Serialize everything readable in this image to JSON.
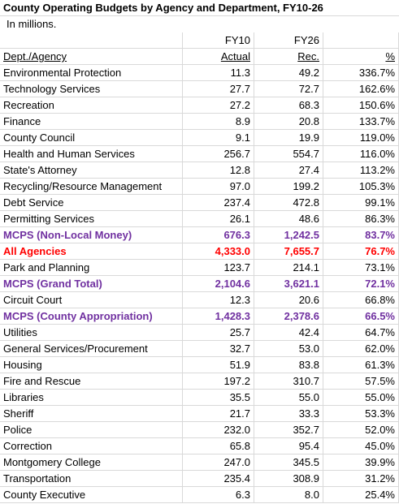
{
  "table": {
    "title": "County Operating Budgets by Agency and Department, FY10-26",
    "note": "In millions.",
    "year_headers": [
      "FY10",
      "FY26"
    ],
    "columns": [
      "Dept./Agency",
      "Actual",
      "Rec.",
      "%"
    ],
    "rows": [
      {
        "cells": [
          "Environmental Protection",
          "11.3",
          "49.2",
          "336.7%"
        ]
      },
      {
        "cells": [
          "Technology Services",
          "27.7",
          "72.7",
          "162.6%"
        ]
      },
      {
        "cells": [
          "Recreation",
          "27.2",
          "68.3",
          "150.6%"
        ]
      },
      {
        "cells": [
          "Finance",
          "8.9",
          "20.8",
          "133.7%"
        ]
      },
      {
        "cells": [
          "County Council",
          "9.1",
          "19.9",
          "119.0%"
        ]
      },
      {
        "cells": [
          "Health and Human Services",
          "256.7",
          "554.7",
          "116.0%"
        ]
      },
      {
        "cells": [
          "State's Attorney",
          "12.8",
          "27.4",
          "113.2%"
        ]
      },
      {
        "cells": [
          "Recycling/Resource Management",
          "97.0",
          "199.2",
          "105.3%"
        ]
      },
      {
        "cells": [
          "Debt Service",
          "237.4",
          "472.8",
          "99.1%"
        ]
      },
      {
        "cells": [
          "Permitting Services",
          "26.1",
          "48.6",
          "86.3%"
        ]
      },
      {
        "cells": [
          "MCPS (Non-Local Money)",
          "676.3",
          "1,242.5",
          "83.7%"
        ],
        "color": "#7030a0",
        "bold": true
      },
      {
        "cells": [
          "All Agencies",
          "4,333.0",
          "7,655.7",
          "76.7%"
        ],
        "color": "#ff0000",
        "bold": true
      },
      {
        "cells": [
          "Park and Planning",
          "123.7",
          "214.1",
          "73.1%"
        ]
      },
      {
        "cells": [
          "MCPS (Grand Total)",
          "2,104.6",
          "3,621.1",
          "72.1%"
        ],
        "color": "#7030a0",
        "bold": true
      },
      {
        "cells": [
          "Circuit Court",
          "12.3",
          "20.6",
          "66.8%"
        ]
      },
      {
        "cells": [
          "MCPS (County Appropriation)",
          "1,428.3",
          "2,378.6",
          "66.5%"
        ],
        "color": "#7030a0",
        "bold": true
      },
      {
        "cells": [
          "Utilities",
          "25.7",
          "42.4",
          "64.7%"
        ]
      },
      {
        "cells": [
          "General Services/Procurement",
          "32.7",
          "53.0",
          "62.0%"
        ]
      },
      {
        "cells": [
          "Housing",
          "51.9",
          "83.8",
          "61.3%"
        ]
      },
      {
        "cells": [
          "Fire and Rescue",
          "197.2",
          "310.7",
          "57.5%"
        ]
      },
      {
        "cells": [
          "Libraries",
          "35.5",
          "55.0",
          "55.0%"
        ]
      },
      {
        "cells": [
          "Sheriff",
          "21.7",
          "33.3",
          "53.3%"
        ]
      },
      {
        "cells": [
          "Police",
          "232.0",
          "352.7",
          "52.0%"
        ]
      },
      {
        "cells": [
          "Correction",
          "65.8",
          "95.4",
          "45.0%"
        ]
      },
      {
        "cells": [
          "Montgomery College",
          "247.0",
          "345.5",
          "39.9%"
        ]
      },
      {
        "cells": [
          "Transportation",
          "235.4",
          "308.9",
          "31.2%"
        ]
      },
      {
        "cells": [
          "County Executive",
          "6.3",
          "8.0",
          "25.4%"
        ]
      }
    ]
  }
}
